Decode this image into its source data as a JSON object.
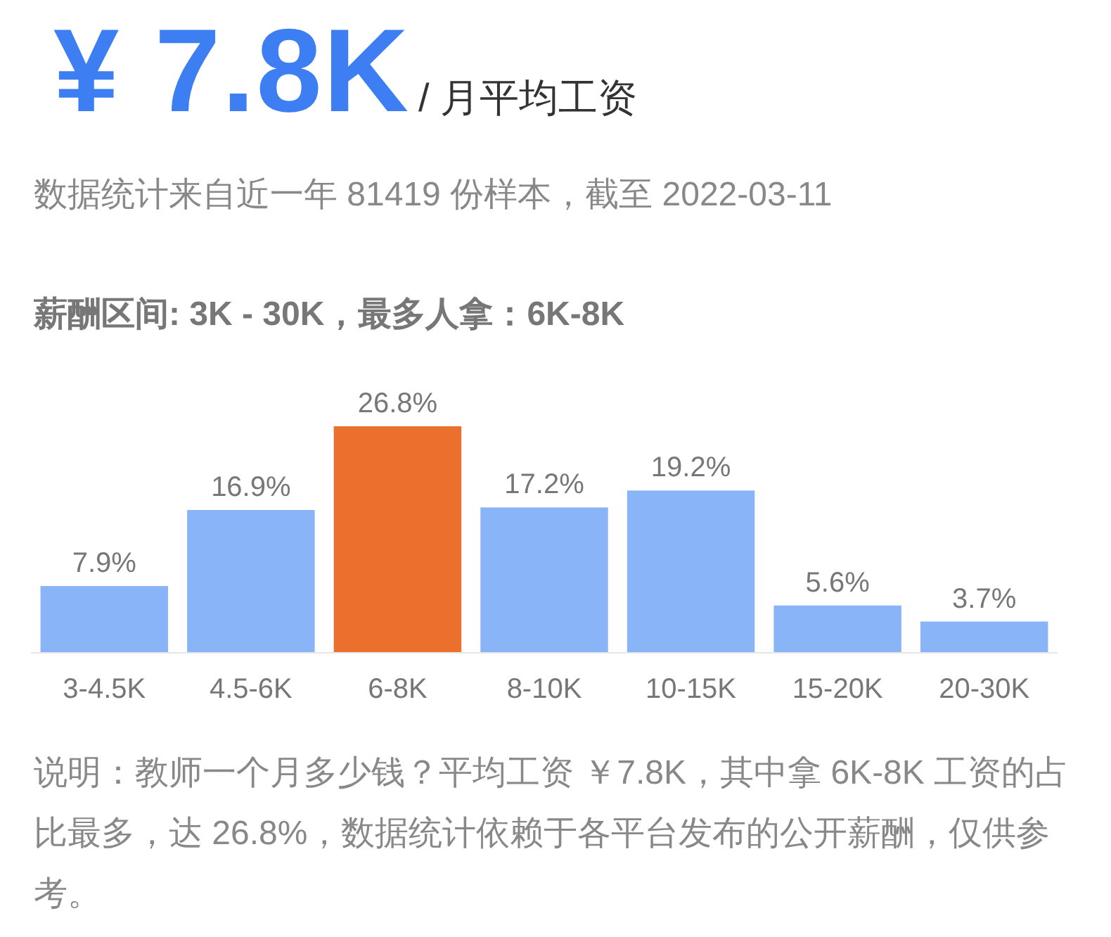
{
  "chart_data": {
    "type": "bar",
    "title": "¥ 7.8K",
    "subtitle": "/ 月平均工资",
    "categories": [
      "3-4.5K",
      "4.5-6K",
      "6-8K",
      "8-10K",
      "10-15K",
      "15-20K",
      "20-30K"
    ],
    "values": [
      7.9,
      16.9,
      26.8,
      17.2,
      19.2,
      5.6,
      3.7
    ],
    "colors": [
      "#8ab4f8",
      "#8ab4f8",
      "#eb6f2d",
      "#8ab4f8",
      "#8ab4f8",
      "#8ab4f8",
      "#8ab4f8"
    ],
    "value_labels": [
      "7.9%",
      "16.9%",
      "26.8%",
      "17.2%",
      "19.2%",
      "5.6%",
      "3.7%"
    ],
    "annotations": [
      "数据统计来自近一年 81419 份样本，截至 2022-03-11",
      "薪酬区间: 3K - 30K，最多人拿：6K-8K",
      "说明：教师一个月多少钱？平均工资 ￥7.8K，其中拿 6K-8K 工资的占比最多，达 26.8%，数据统计依赖于各平台发布的公开薪酬，仅供参考。"
    ]
  }
}
